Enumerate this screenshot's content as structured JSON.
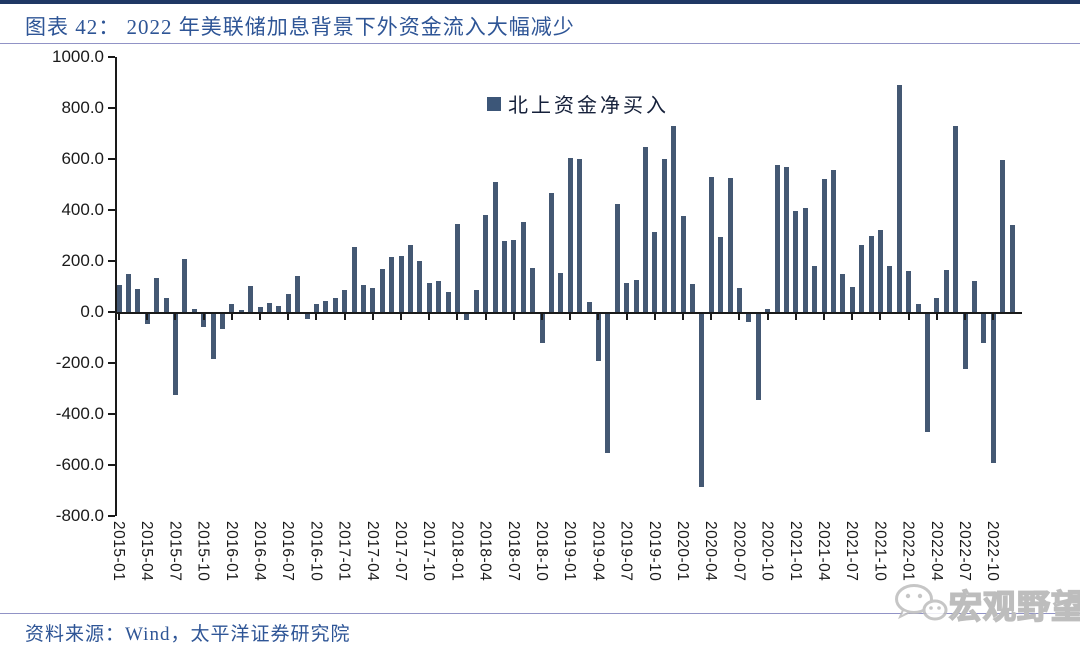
{
  "header": {
    "title": "图表 42：  2022 年美联储加息背景下外资金流入大幅减少"
  },
  "footer": {
    "source": "资料来源：Wind，太平洋证券研究院"
  },
  "watermark": {
    "text": "宏观野望",
    "icon": "wechat-bubbles-icon"
  },
  "colors": {
    "bar": "#445873",
    "accent_navy": "#1F3864",
    "title_blue": "#2E5596",
    "rule_purple": "#9193C6"
  },
  "chart_data": {
    "type": "bar",
    "title": "",
    "legend": [
      "北上资金净买入"
    ],
    "legend_position": "top-center",
    "grid": false,
    "ylim": [
      -800,
      1000
    ],
    "ytick_labels": [
      "1000.0",
      "800.0",
      "600.0",
      "400.0",
      "200.0",
      "0.0",
      "-200.0",
      "-400.0",
      "-600.0",
      "-800.0"
    ],
    "x": [
      "2015-01",
      "2015-02",
      "2015-03",
      "2015-04",
      "2015-05",
      "2015-06",
      "2015-07",
      "2015-08",
      "2015-09",
      "2015-10",
      "2015-11",
      "2015-12",
      "2016-01",
      "2016-02",
      "2016-03",
      "2016-04",
      "2016-05",
      "2016-06",
      "2016-07",
      "2016-08",
      "2016-09",
      "2016-10",
      "2016-11",
      "2016-12",
      "2017-01",
      "2017-02",
      "2017-03",
      "2017-04",
      "2017-05",
      "2017-06",
      "2017-07",
      "2017-08",
      "2017-09",
      "2017-10",
      "2017-11",
      "2017-12",
      "2018-01",
      "2018-02",
      "2018-03",
      "2018-04",
      "2018-05",
      "2018-06",
      "2018-07",
      "2018-08",
      "2018-09",
      "2018-10",
      "2018-11",
      "2018-12",
      "2019-01",
      "2019-02",
      "2019-03",
      "2019-04",
      "2019-05",
      "2019-06",
      "2019-07",
      "2019-08",
      "2019-09",
      "2019-10",
      "2019-11",
      "2019-12",
      "2020-01",
      "2020-02",
      "2020-03",
      "2020-04",
      "2020-05",
      "2020-06",
      "2020-07",
      "2020-08",
      "2020-09",
      "2020-10",
      "2020-11",
      "2020-12",
      "2021-01",
      "2021-02",
      "2021-03",
      "2021-04",
      "2021-05",
      "2021-06",
      "2021-07",
      "2021-08",
      "2021-09",
      "2021-10",
      "2021-11",
      "2021-12",
      "2022-01",
      "2022-02",
      "2022-03",
      "2022-04",
      "2022-05",
      "2022-06",
      "2022-07",
      "2022-08",
      "2022-09",
      "2022-10",
      "2022-11",
      "2022-12"
    ],
    "values": [
      105,
      150,
      90,
      -38,
      135,
      55,
      -319,
      208,
      10,
      -50,
      -175,
      -57,
      30,
      8,
      103,
      21,
      37,
      25,
      72,
      140,
      -18,
      30,
      42,
      55,
      85,
      254,
      106,
      93,
      169,
      216,
      218,
      264,
      201,
      112,
      120,
      78,
      346,
      -25,
      88,
      382,
      509,
      280,
      284,
      352,
      171,
      -115,
      468,
      153,
      604,
      601,
      40,
      -184,
      -546,
      424,
      112,
      125,
      646,
      315,
      600,
      731,
      378,
      110,
      -680,
      528,
      295,
      524,
      95,
      -30,
      -337,
      10,
      578,
      570,
      397,
      408,
      180,
      521,
      555,
      149,
      99,
      261,
      297,
      323,
      180,
      891,
      160,
      33,
      -463,
      55,
      163,
      730,
      -217,
      120,
      -115,
      -583,
      597,
      341
    ],
    "xtick_labels": [
      "2015-01",
      "2015-04",
      "2015-07",
      "2015-10",
      "2016-01",
      "2016-04",
      "2016-07",
      "2016-10",
      "2017-01",
      "2017-04",
      "2017-07",
      "2017-10",
      "2018-01",
      "2018-04",
      "2018-07",
      "2018-10",
      "2019-01",
      "2019-04",
      "2019-07",
      "2019-10",
      "2020-01",
      "2020-04",
      "2020-07",
      "2020-10",
      "2021-01",
      "2021-04",
      "2021-07",
      "2021-10",
      "2022-01",
      "2022-04",
      "2022-07",
      "2022-10"
    ],
    "xlabel": "",
    "ylabel": ""
  }
}
